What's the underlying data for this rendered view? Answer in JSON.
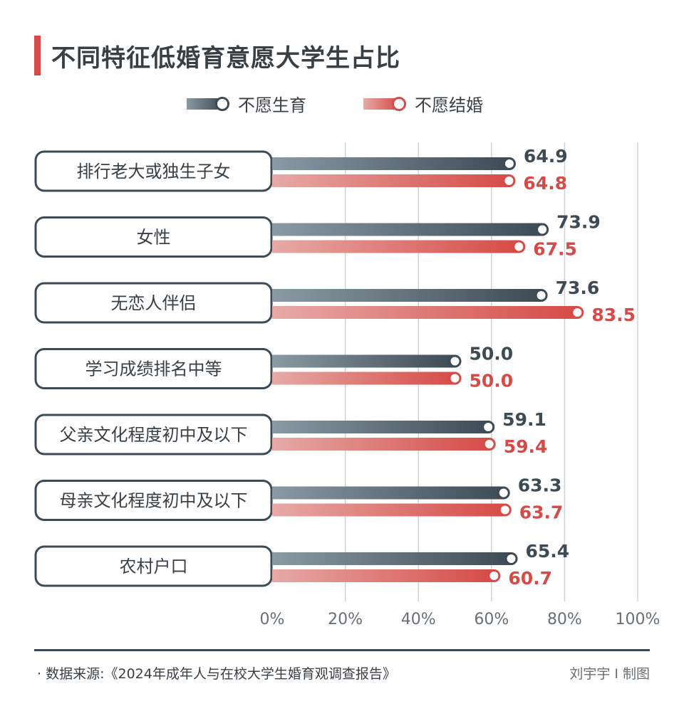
{
  "title": "不同特征低婚育意愿大学生占比",
  "legend": {
    "series1": "不愿生育",
    "series2": "不愿结婚"
  },
  "colors": {
    "series1_dark": "#3d4b55",
    "series1_light": "#8a9aa5",
    "series2_dark": "#d64b47",
    "series2_light": "#e6aaa6",
    "series1_text": "#3d4b55",
    "series2_text": "#d64b47",
    "accent": "#d64b47"
  },
  "chart_data": {
    "type": "bar",
    "orientation": "horizontal",
    "categories": [
      "排行老大或独生子女",
      "女性",
      "无恋人伴侣",
      "学习成绩排名中等",
      "父亲文化程度初中及以下",
      "母亲文化程度初中及以下",
      "农村户口"
    ],
    "series": [
      {
        "name": "不愿生育",
        "values": [
          64.9,
          73.9,
          73.6,
          50.0,
          59.1,
          63.3,
          65.4
        ]
      },
      {
        "name": "不愿结婚",
        "values": [
          64.8,
          67.5,
          83.5,
          50.0,
          59.4,
          63.7,
          60.7
        ]
      }
    ],
    "value_labels": [
      [
        "64.9",
        "73.9",
        "73.6",
        "50.0",
        "59.1",
        "63.3",
        "65.4"
      ],
      [
        "64.8",
        "67.5",
        "83.5",
        "50.0",
        "59.4",
        "63.7",
        "60.7"
      ]
    ],
    "xlim": [
      0,
      100
    ],
    "xticks": [
      0,
      20,
      40,
      60,
      80,
      100
    ],
    "xtick_labels": [
      "0%",
      "20%",
      "40%",
      "60%",
      "80%",
      "100%"
    ],
    "grid": true,
    "legend_position": "top-center"
  },
  "footer": {
    "source": "· 数据来源:《2024年成年人与在校大学生婚育观调查报告》",
    "credit": "刘宇宇 I 制图"
  }
}
